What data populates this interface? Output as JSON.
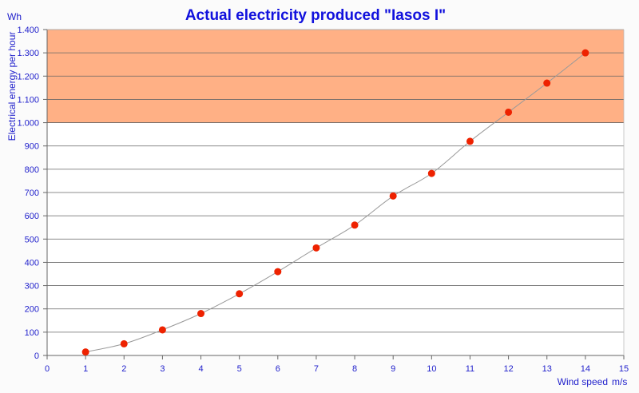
{
  "chart_data": {
    "type": "scatter",
    "title": "Actual electricity produced \"Iasos I\"",
    "ylabel": "Electrical energy per hour",
    "yunit": "Wh",
    "xlabel": "Wind speed",
    "xunit": "m/s",
    "xlim": [
      0,
      15
    ],
    "ylim": [
      0,
      1400
    ],
    "xticks": [
      0,
      1,
      2,
      3,
      4,
      5,
      6,
      7,
      8,
      9,
      10,
      11,
      12,
      13,
      14,
      15
    ],
    "yticks": [
      0,
      100,
      200,
      300,
      400,
      500,
      600,
      700,
      800,
      900,
      1000,
      1100,
      1200,
      1300,
      1400
    ],
    "ytick_labels": [
      "0",
      "100",
      "200",
      "300",
      "400",
      "500",
      "600",
      "700",
      "800",
      "900",
      "1.000",
      "1.100",
      "1.200",
      "1.300",
      "1.400"
    ],
    "grid": true,
    "highlight_band": {
      "from": 1000,
      "to": 1400,
      "color": "#ffb085"
    },
    "series": [
      {
        "x": [
          1,
          2,
          3,
          4,
          5,
          6,
          7,
          8,
          9,
          10,
          11,
          12,
          13,
          14
        ],
        "y": [
          15,
          50,
          110,
          180,
          265,
          360,
          462,
          560,
          685,
          782,
          920,
          1045,
          1170,
          1300
        ],
        "color": "#ee2200",
        "line_color": "#999999"
      }
    ],
    "colors": {
      "text": "#2222cc",
      "title": "#1111dd",
      "grid": "#666666",
      "plot_bg": "#ffffff"
    }
  }
}
